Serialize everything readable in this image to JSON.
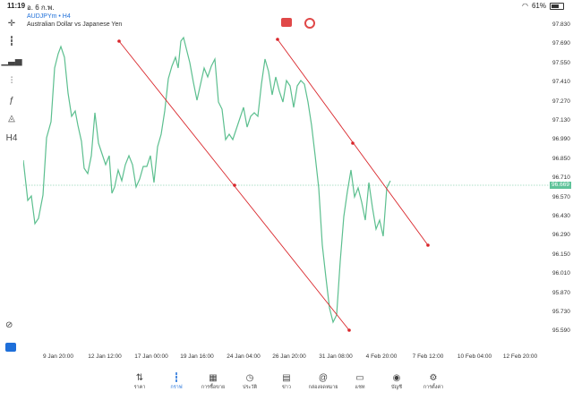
{
  "status": {
    "time": "11:19",
    "date": "อ. 6 ก.พ.",
    "battery": "61%"
  },
  "symbol": {
    "name": "AUDJPYm",
    "timeframe": "H4",
    "description": "Australian Dollar vs Japanese Yen"
  },
  "price_axis": [
    "97.830",
    "97.690",
    "97.550",
    "97.410",
    "97.270",
    "97.130",
    "96.990",
    "96.850",
    "96.710",
    "96.570",
    "96.430",
    "96.290",
    "96.150",
    "96.010",
    "95.870",
    "95.730",
    "95.590"
  ],
  "current_price": "96.669",
  "time_axis": [
    "9 Jan 20:00",
    "12 Jan 12:00",
    "17 Jan 00:00",
    "19 Jan 16:00",
    "24 Jan 04:00",
    "26 Jan 20:00",
    "31 Jan 08:00",
    "4 Feb 20:00",
    "7 Feb 12:00",
    "10 Feb 04:00",
    "12 Feb 20:00"
  ],
  "left_tools": [
    {
      "name": "crosshair-icon",
      "glyph": "✛"
    },
    {
      "name": "candles-icon",
      "glyph": "┇"
    },
    {
      "name": "bars-chart-icon",
      "glyph": "▁▃▅"
    },
    {
      "name": "indicators-icon",
      "glyph": "⫶"
    },
    {
      "name": "function-icon",
      "glyph": "ƒ"
    },
    {
      "name": "objects-icon",
      "glyph": "◬"
    },
    {
      "name": "timeframe-icon",
      "glyph": "H4"
    }
  ],
  "nav": [
    {
      "id": "quotes",
      "label": "ราคา",
      "glyph": "⇅"
    },
    {
      "id": "chart",
      "label": "กราฟ",
      "glyph": "┇",
      "active": true
    },
    {
      "id": "trade",
      "label": "การซื้อขาย",
      "glyph": "▦"
    },
    {
      "id": "history",
      "label": "ประวัติ",
      "glyph": "◷"
    },
    {
      "id": "news",
      "label": "ข่าว",
      "glyph": "▤"
    },
    {
      "id": "mailbox",
      "label": "กล่องจดหมาย",
      "glyph": "@"
    },
    {
      "id": "chat",
      "label": "แชท",
      "glyph": "▭"
    },
    {
      "id": "account",
      "label": "บัญชี",
      "glyph": "◉"
    },
    {
      "id": "settings",
      "label": "การตั้งค่า",
      "glyph": "⚙"
    }
  ],
  "colors": {
    "line": "#5cbf8f",
    "trendline": "#d9262b",
    "accent": "#1e6fd9"
  }
}
